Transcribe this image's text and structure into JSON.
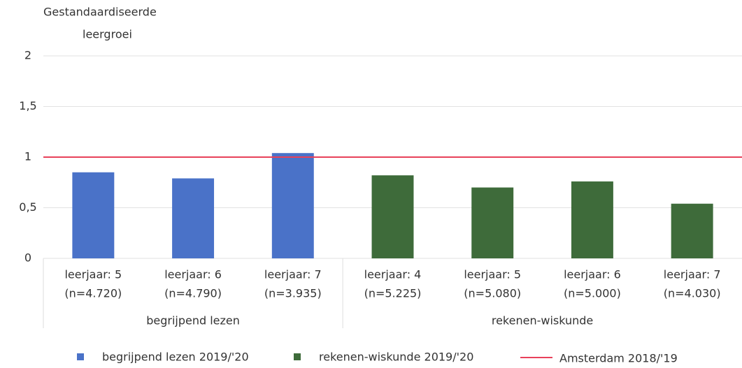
{
  "chart_data": {
    "type": "bar",
    "y_label": [
      "Gestandaardiseerde",
      "leergroei"
    ],
    "categories": [
      [
        "leerjaar: 5",
        "(n=4.720)"
      ],
      [
        "leerjaar: 6",
        "(n=4.790)"
      ],
      [
        "leerjaar: 7",
        "(n=3.935)"
      ],
      [
        "leerjaar: 4",
        "(n=5.225)"
      ],
      [
        "leerjaar: 5",
        "(n=5.080)"
      ],
      [
        "leerjaar: 6",
        "(n=5.000)"
      ],
      [
        "leerjaar: 7",
        "(n=4.030)"
      ]
    ],
    "group_labels": [
      "begrijpend lezen",
      "rekenen-wiskunde"
    ],
    "series": [
      {
        "name": "begrijpend lezen 2019/'20",
        "color": "#4a72c8",
        "values": [
          0.85,
          0.79,
          1.04,
          null,
          null,
          null,
          null
        ]
      },
      {
        "name": "rekenen-wiskunde 2019/'20",
        "color": "#3e6b3a",
        "values": [
          null,
          null,
          null,
          0.82,
          0.7,
          0.76,
          0.54
        ]
      }
    ],
    "reference_lines": [
      {
        "name": "Amsterdam 2018/'19",
        "value": 1,
        "color": "#e8415a"
      }
    ],
    "ylim": [
      0,
      2
    ],
    "yticks": [
      0,
      {
        "value": 0.5,
        "label": "0,5"
      },
      1,
      {
        "value": 1.5,
        "label": "1,5"
      },
      2
    ],
    "grid": true
  }
}
